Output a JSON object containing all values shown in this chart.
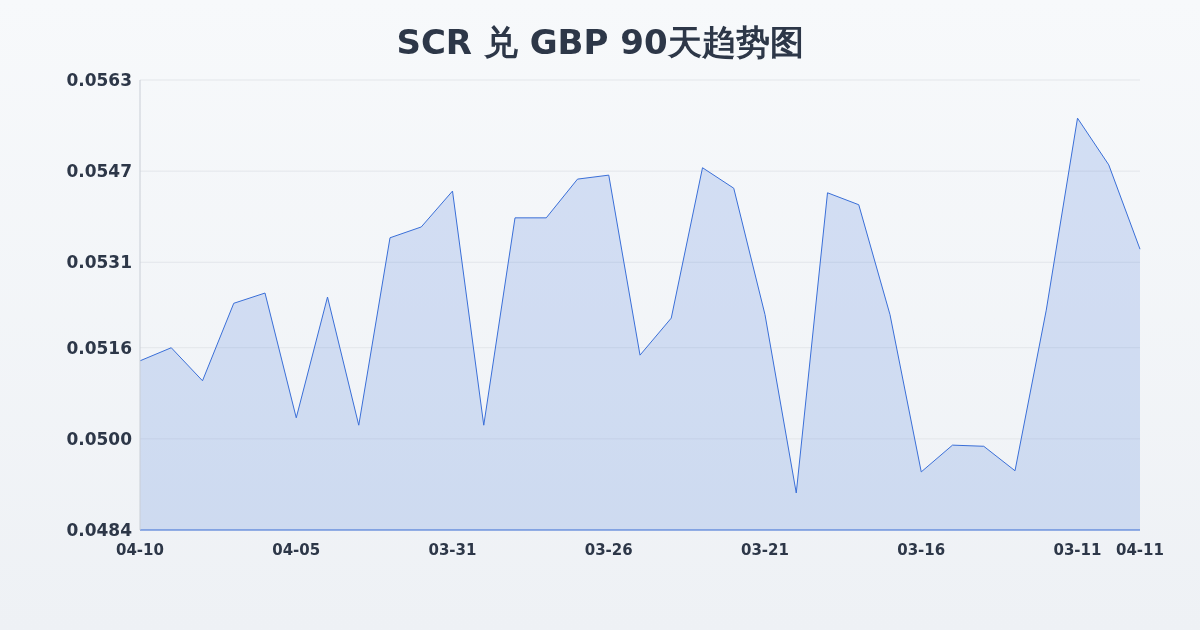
{
  "chart_data": {
    "type": "area",
    "title": "SCR 兑 GBP 90天趋势图",
    "categories": [
      "04-10",
      null,
      null,
      null,
      null,
      "04-05",
      null,
      null,
      null,
      null,
      "03-31",
      null,
      null,
      null,
      null,
      "03-26",
      null,
      null,
      null,
      null,
      "03-21",
      null,
      null,
      null,
      null,
      "03-16",
      null,
      null,
      null,
      null,
      "03-11",
      null,
      "04-11"
    ],
    "series": [
      {
        "color": "#3a6fd8",
        "values": [
          0.05137,
          0.0516,
          0.05102,
          0.05238,
          0.05256,
          0.05037,
          0.05249,
          0.05024,
          0.05353,
          0.05372,
          0.05435,
          0.05024,
          0.05388,
          0.05388,
          0.05456,
          0.05463,
          0.05147,
          0.05212,
          0.05476,
          0.0544,
          0.05218,
          0.04905,
          0.05432,
          0.05411,
          0.05218,
          0.04942,
          0.04989,
          0.04987,
          0.04944,
          0.05226,
          0.05563,
          0.05481,
          0.05333
        ]
      }
    ],
    "ylim": [
      0.0484,
      0.0563
    ],
    "yticks": [
      0.0484,
      {
        "value": 0.05,
        "label": "0.0500"
      },
      0.0516,
      0.0531,
      0.0547,
      0.0563
    ],
    "grid": "y",
    "marker": "none",
    "line_style": "solid",
    "legend": false
  }
}
